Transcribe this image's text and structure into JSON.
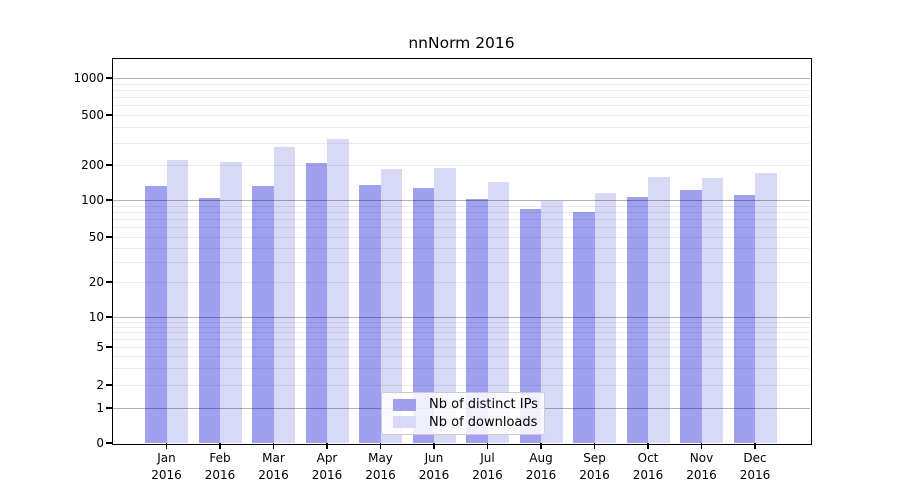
{
  "chart": {
    "title": "nnNorm 2016",
    "y_axis": {
      "tick_labels": [
        "1000",
        "500",
        "200",
        "100",
        "50",
        "20",
        "10",
        "5",
        "2",
        "1",
        "0"
      ]
    },
    "x_axis": {
      "tick_labels": [
        {
          "month": "Jan",
          "year": "2016"
        },
        {
          "month": "Feb",
          "year": "2016"
        },
        {
          "month": "Mar",
          "year": "2016"
        },
        {
          "month": "Apr",
          "year": "2016"
        },
        {
          "month": "May",
          "year": "2016"
        },
        {
          "month": "Jun",
          "year": "2016"
        },
        {
          "month": "Jul",
          "year": "2016"
        },
        {
          "month": "Aug",
          "year": "2016"
        },
        {
          "month": "Sep",
          "year": "2016"
        },
        {
          "month": "Oct",
          "year": "2016"
        },
        {
          "month": "Nov",
          "year": "2016"
        },
        {
          "month": "Dec",
          "year": "2016"
        }
      ]
    },
    "legend": {
      "items": [
        {
          "label": "Nb of distinct IPs",
          "color": "#a0a0f0"
        },
        {
          "label": "Nb of downloads",
          "color": "#d8d8f7"
        }
      ]
    }
  },
  "chart_data": {
    "type": "bar",
    "title": "nnNorm 2016",
    "categories": [
      "Jan 2016",
      "Feb 2016",
      "Mar 2016",
      "Apr 2016",
      "May 2016",
      "Jun 2016",
      "Jul 2016",
      "Aug 2016",
      "Sep 2016",
      "Oct 2016",
      "Nov 2016",
      "Dec 2016"
    ],
    "series": [
      {
        "name": "Nb of distinct IPs",
        "color": "#a0a0f0",
        "values": [
          133,
          105,
          133,
          207,
          135,
          126,
          102,
          85,
          80,
          107,
          121,
          111
        ]
      },
      {
        "name": "Nb of downloads",
        "color": "#d8d8f7",
        "values": [
          220,
          210,
          280,
          320,
          185,
          188,
          143,
          98,
          116,
          157,
          156,
          172
        ]
      }
    ],
    "xlabel": "",
    "ylabel": "",
    "yscale": "log-like (0,1,2,5,10,20,50,100,200,500,1000)",
    "y_ticks": [
      1000,
      500,
      200,
      100,
      50,
      20,
      10,
      5,
      2,
      1,
      0
    ],
    "ylim": [
      0,
      1300
    ],
    "grid": true,
    "legend_position": "inside lower-center"
  }
}
